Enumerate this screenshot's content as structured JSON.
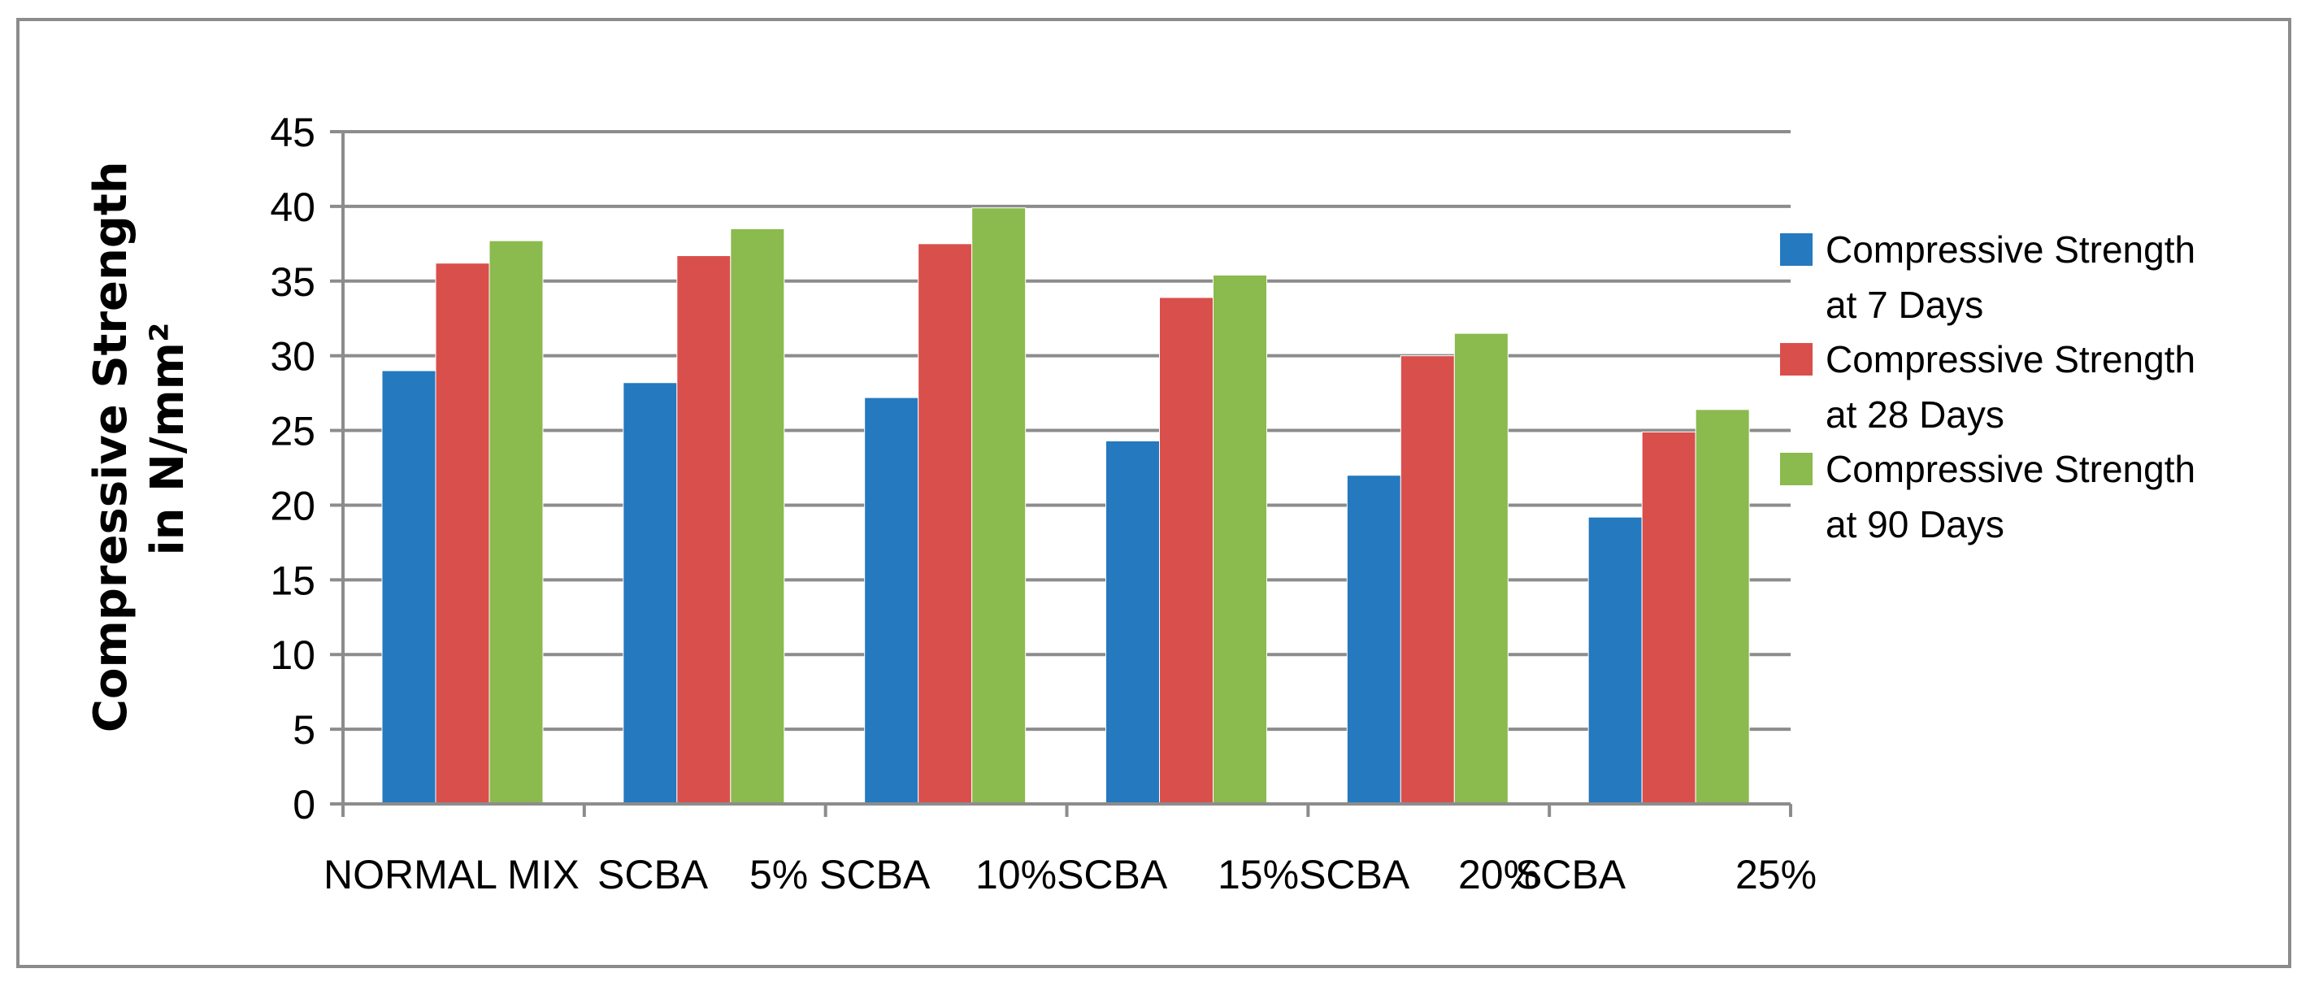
{
  "chart_data": {
    "type": "bar",
    "title": "",
    "xlabel": "",
    "ylabel_lines": [
      "Compressive Strength",
      "in N/mm²"
    ],
    "ylim": [
      0,
      45
    ],
    "yticks": [
      0,
      5,
      10,
      15,
      20,
      25,
      30,
      35,
      40,
      45
    ],
    "grid": true,
    "legend_position": "right",
    "categories": [
      "NORMAL MIX",
      "SCBA   5%",
      "SCBA   10%",
      "SCBA   15%",
      "SCBA   20%",
      "SCBA   25%"
    ],
    "category_tick_labels": [
      "NORMAL MIX",
      "SCBA",
      "5% SCBA",
      "10%SCBA",
      "15%SCBA",
      "20%",
      "SCBA",
      "25%"
    ],
    "series": [
      {
        "name": "Compressive Strength at 7 Days",
        "legend_lines": [
          "Compressive Strength",
          "at 7 Days"
        ],
        "color": "#2479BF",
        "values": [
          29.0,
          28.2,
          27.2,
          24.3,
          22.0,
          19.2
        ]
      },
      {
        "name": "Compressive Strength at 28 Days",
        "legend_lines": [
          "Compressive Strength",
          "at 28 Days"
        ],
        "color": "#D94F4C",
        "values": [
          36.2,
          36.7,
          37.5,
          33.9,
          30.0,
          24.9
        ]
      },
      {
        "name": "Compressive Strength at 90 Days",
        "legend_lines": [
          "Compressive Strength",
          "at 90 Days"
        ],
        "color": "#8BBA4E",
        "values": [
          37.7,
          38.5,
          39.9,
          35.4,
          31.5,
          26.4
        ]
      }
    ]
  }
}
